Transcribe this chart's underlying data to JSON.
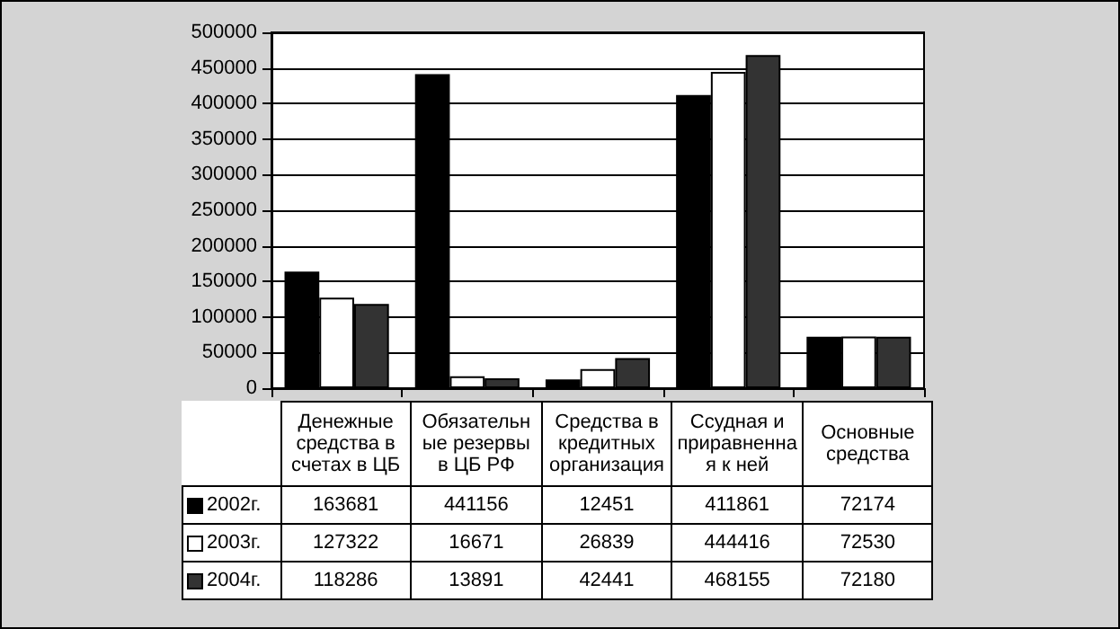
{
  "chart_data": {
    "type": "bar",
    "categories": [
      "Денежные средства в счетах в ЦБ",
      "Обязательные резервы в ЦБ  РФ",
      "Средства в кредитных организация",
      "Ссудная и приравненная к ней",
      "Основные средства"
    ],
    "series": [
      {
        "name": "2002г.",
        "color": "#000000",
        "values": [
          163681,
          441156,
          12451,
          411861,
          72174
        ]
      },
      {
        "name": "2003г.",
        "color": "#ffffff",
        "values": [
          127322,
          16671,
          26839,
          444416,
          72530
        ]
      },
      {
        "name": "2004г.",
        "color": "#333333",
        "values": [
          118286,
          13891,
          42441,
          468155,
          72180
        ]
      }
    ],
    "ylim": [
      0,
      500000
    ],
    "yticks": [
      0,
      50000,
      100000,
      150000,
      200000,
      250000,
      300000,
      350000,
      400000,
      450000,
      500000
    ],
    "grid": "y",
    "data_labels": true,
    "legend": "bottom"
  }
}
